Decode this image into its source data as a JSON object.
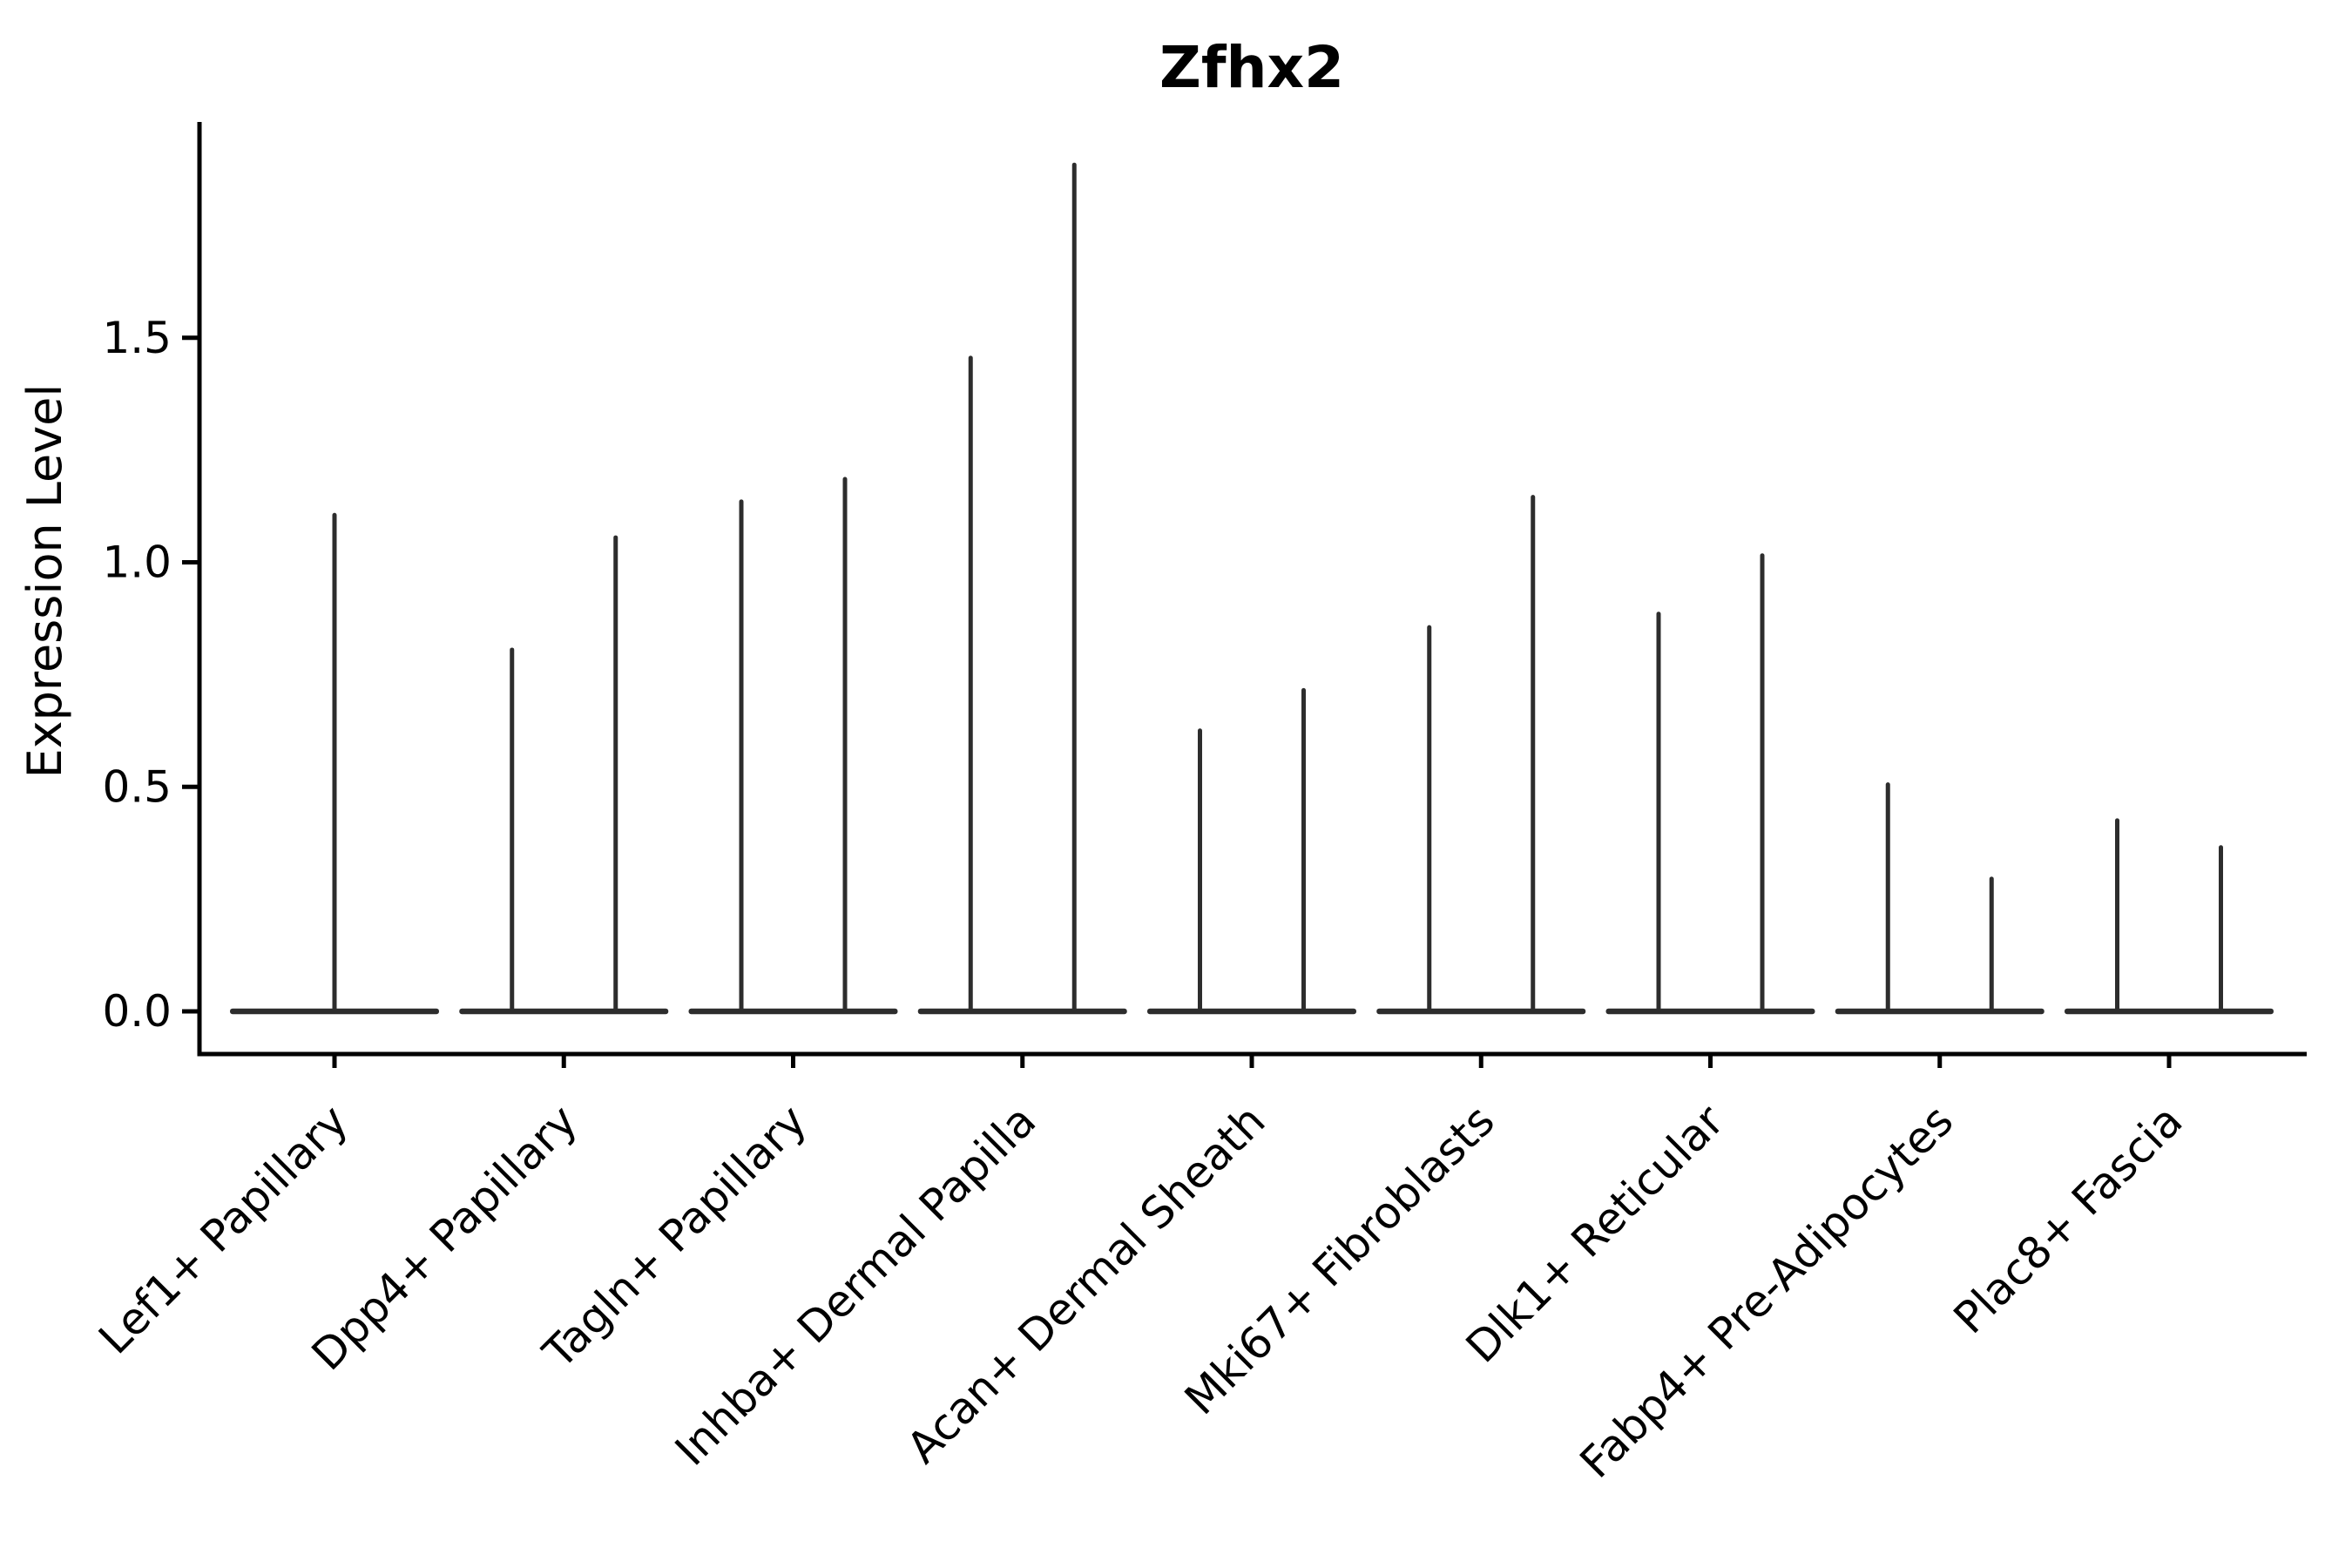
{
  "page": {
    "background": "#ffffff"
  },
  "chart_data": {
    "type": "violin",
    "title": "Zfhx2",
    "xlabel": "",
    "ylabel": "Expression Level",
    "categories": [
      "Lef1+ Papillary",
      "Dpp4+ Papillary",
      "Tagln+ Papillary",
      "Inhba+ Dermal Papilla",
      "Acan+ Dermal Sheath",
      "Mki67+ Fibroblasts",
      "Dlk1+ Reticular",
      "Fabp4+ Pre-Adipocytes",
      "Plac8+ Fascia"
    ],
    "ylim": [
      -0.095,
      1.98
    ],
    "yticks": [
      0.0,
      0.5,
      1.0,
      1.5
    ],
    "ytick_labels": [
      "0.0",
      "0.5",
      "1.0",
      "1.5"
    ],
    "grid": false,
    "xtick_label_rotation_deg": 45,
    "baseline_value": 0.0,
    "violins": [
      {
        "category": "Lef1+ Papillary",
        "spikes": [
          {
            "position": "center",
            "peak": 1.11
          }
        ]
      },
      {
        "category": "Dpp4+ Papillary",
        "spikes": [
          {
            "position": "left",
            "peak": 0.81
          },
          {
            "position": "right",
            "peak": 1.06
          }
        ]
      },
      {
        "category": "Tagln+ Papillary",
        "spikes": [
          {
            "position": "left",
            "peak": 1.14
          },
          {
            "position": "right",
            "peak": 1.19
          }
        ]
      },
      {
        "category": "Inhba+ Dermal Papilla",
        "spikes": [
          {
            "position": "left",
            "peak": 1.46
          },
          {
            "position": "right",
            "peak": 1.89
          }
        ]
      },
      {
        "category": "Acan+ Dermal Sheath",
        "spikes": [
          {
            "position": "left",
            "peak": 0.63
          },
          {
            "position": "right",
            "peak": 0.72
          }
        ]
      },
      {
        "category": "Mki67+ Fibroblasts",
        "spikes": [
          {
            "position": "left",
            "peak": 0.86
          },
          {
            "position": "right",
            "peak": 1.15
          }
        ]
      },
      {
        "category": "Dlk1+ Reticular",
        "spikes": [
          {
            "position": "left",
            "peak": 0.89
          },
          {
            "position": "right",
            "peak": 1.02
          }
        ]
      },
      {
        "category": "Fabp4+ Pre-Adipocytes",
        "spikes": [
          {
            "position": "left",
            "peak": 0.51
          },
          {
            "position": "right",
            "peak": 0.3
          }
        ]
      },
      {
        "category": "Plac8+ Fascia",
        "spikes": [
          {
            "position": "left",
            "peak": 0.43
          },
          {
            "position": "right",
            "peak": 0.37
          }
        ]
      }
    ],
    "colors": {
      "violin": "#2d2d2d",
      "axis": "#000000",
      "text": "#000000"
    }
  }
}
